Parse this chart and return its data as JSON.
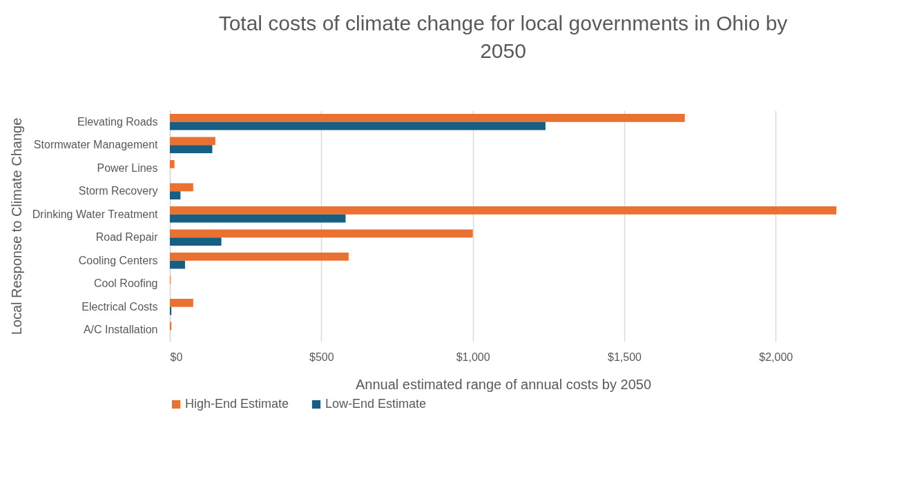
{
  "chart_data": {
    "type": "bar",
    "orientation": "horizontal",
    "title": "Total costs of climate change for local governments in Ohio by 2050",
    "xlabel": "Annual estimated range of annual costs by 2050",
    "ylabel": "Local Response to Climate Change",
    "categories": [
      "Elevating Roads",
      "Stormwater Management",
      "Power Lines",
      "Storm Recovery",
      "Drinking Water Treatment",
      "Road Repair",
      "Cooling Centers",
      "Cool Roofing",
      "Electrical Costs",
      "A/C Installation"
    ],
    "series": [
      {
        "name": "High-End Estimate",
        "color": "#e97132",
        "values": [
          1700,
          150,
          15,
          77,
          2200,
          1000,
          590,
          2,
          77,
          5
        ]
      },
      {
        "name": "Low-End Estimate",
        "color": "#156082",
        "values": [
          1240,
          140,
          0,
          35,
          580,
          170,
          50,
          0,
          5,
          0
        ]
      }
    ],
    "xlim": [
      0,
      2200
    ],
    "xticks": [
      {
        "value": 0,
        "label": "$0"
      },
      {
        "value": 500,
        "label": "$500"
      },
      {
        "value": 1000,
        "label": "$1,000"
      },
      {
        "value": 1500,
        "label": "$1,500"
      },
      {
        "value": 2000,
        "label": "$2,000"
      }
    ],
    "grid": "x",
    "legend": "bottom"
  }
}
